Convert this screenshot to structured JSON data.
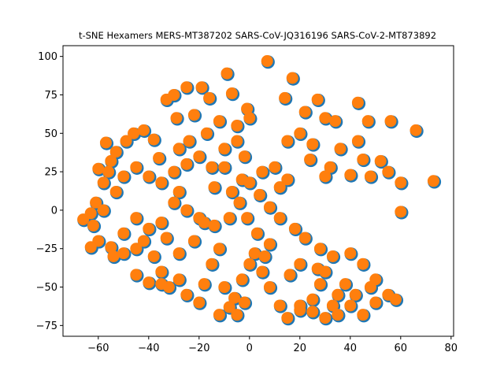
{
  "chart_data": {
    "type": "scatter",
    "title": "t-SNE Hexamers MERS-MT387202 SARS-CoV-JQ316196 SARS-CoV-2-MT873892",
    "xlabel": "",
    "ylabel": "",
    "xlim": [
      -74,
      81
    ],
    "ylim": [
      -82,
      107
    ],
    "xticks": [
      -60,
      -40,
      -20,
      0,
      20,
      40,
      60,
      80
    ],
    "yticks": [
      -75,
      -50,
      -25,
      0,
      25,
      50,
      75,
      100
    ],
    "grid": false,
    "legend": "none",
    "series": [
      {
        "color": "#1f77b4",
        "points": [
          [
            -66,
            -6
          ],
          [
            -63,
            -2
          ],
          [
            -61,
            5
          ],
          [
            -60,
            27
          ],
          [
            -58,
            18
          ],
          [
            -56,
            25
          ],
          [
            -57,
            44
          ],
          [
            -55,
            32
          ],
          [
            -53,
            38
          ],
          [
            -49,
            45
          ],
          [
            -46,
            50
          ],
          [
            -42,
            52
          ],
          [
            -38,
            46
          ],
          [
            -36,
            34
          ],
          [
            -33,
            72
          ],
          [
            -30,
            75
          ],
          [
            -29,
            60
          ],
          [
            -25,
            80
          ],
          [
            -22,
            62
          ],
          [
            -19,
            80
          ],
          [
            -16,
            73
          ],
          [
            -12,
            58
          ],
          [
            -9,
            89
          ],
          [
            -7,
            76
          ],
          [
            -5,
            55
          ],
          [
            -1,
            66
          ],
          [
            0,
            60
          ],
          [
            7,
            97
          ],
          [
            14,
            73
          ],
          [
            17,
            86
          ],
          [
            22,
            64
          ],
          [
            27,
            72
          ],
          [
            30,
            60
          ],
          [
            34,
            58
          ],
          [
            43,
            70
          ],
          [
            47,
            58
          ],
          [
            56,
            58
          ],
          [
            66,
            52
          ],
          [
            43,
            45
          ],
          [
            20,
            50
          ],
          [
            25,
            43
          ],
          [
            36,
            40
          ],
          [
            45,
            33
          ],
          [
            52,
            32
          ],
          [
            55,
            25
          ],
          [
            60,
            18
          ],
          [
            73,
            19
          ],
          [
            60,
            -1
          ],
          [
            48,
            22
          ],
          [
            40,
            23
          ],
          [
            30,
            22
          ],
          [
            15,
            20
          ],
          [
            5,
            25
          ],
          [
            -2,
            35
          ],
          [
            -5,
            45
          ],
          [
            -10,
            40
          ],
          [
            -15,
            28
          ],
          [
            -20,
            35
          ],
          [
            -25,
            30
          ],
          [
            -30,
            25
          ],
          [
            -35,
            18
          ],
          [
            -40,
            22
          ],
          [
            -45,
            28
          ],
          [
            -50,
            22
          ],
          [
            -53,
            12
          ],
          [
            -58,
            0
          ],
          [
            -62,
            -10
          ],
          [
            -60,
            -20
          ],
          [
            -63,
            -24
          ],
          [
            -55,
            -24
          ],
          [
            -50,
            -15
          ],
          [
            -45,
            -5
          ],
          [
            -42,
            -20
          ],
          [
            -38,
            -30
          ],
          [
            -35,
            -40
          ],
          [
            -32,
            -50
          ],
          [
            -28,
            -45
          ],
          [
            -25,
            -55
          ],
          [
            -20,
            -60
          ],
          [
            -18,
            -48
          ],
          [
            -15,
            -35
          ],
          [
            -12,
            -25
          ],
          [
            -10,
            -50
          ],
          [
            -8,
            -63
          ],
          [
            -6,
            -57
          ],
          [
            -3,
            -45
          ],
          [
            0,
            -35
          ],
          [
            2,
            -28
          ],
          [
            5,
            -40
          ],
          [
            -12,
            -68
          ],
          [
            -5,
            -68
          ],
          [
            8,
            -50
          ],
          [
            12,
            -62
          ],
          [
            15,
            -70
          ],
          [
            20,
            -65
          ],
          [
            25,
            -58
          ],
          [
            28,
            -48
          ],
          [
            30,
            -40
          ],
          [
            33,
            -30
          ],
          [
            28,
            -25
          ],
          [
            22,
            -18
          ],
          [
            18,
            -12
          ],
          [
            12,
            -5
          ],
          [
            8,
            2
          ],
          [
            4,
            10
          ],
          [
            0,
            18
          ],
          [
            -4,
            5
          ],
          [
            -8,
            -5
          ],
          [
            -14,
            -10
          ],
          [
            -20,
            -5
          ],
          [
            -25,
            0
          ],
          [
            -30,
            5
          ],
          [
            -35,
            -8
          ],
          [
            -40,
            -12
          ],
          [
            -45,
            -25
          ],
          [
            -50,
            -28
          ],
          [
            -54,
            -30
          ],
          [
            -45,
            -42
          ],
          [
            -40,
            -47
          ],
          [
            -35,
            -48
          ],
          [
            -28,
            -28
          ],
          [
            -22,
            -20
          ],
          [
            -18,
            -8
          ],
          [
            -28,
            12
          ],
          [
            -33,
            -18
          ],
          [
            35,
            -55
          ],
          [
            40,
            -62
          ],
          [
            45,
            -68
          ],
          [
            50,
            -60
          ],
          [
            55,
            -55
          ],
          [
            58,
            -58
          ],
          [
            50,
            -45
          ],
          [
            45,
            -35
          ],
          [
            40,
            -28
          ],
          [
            35,
            -68
          ],
          [
            30,
            -70
          ],
          [
            25,
            -66
          ],
          [
            20,
            -62
          ],
          [
            38,
            -48
          ],
          [
            42,
            -55
          ],
          [
            -3,
            20
          ],
          [
            10,
            28
          ],
          [
            12,
            15
          ],
          [
            -7,
            12
          ],
          [
            3,
            -15
          ],
          [
            -1,
            -5
          ],
          [
            6,
            -30
          ],
          [
            16,
            -42
          ],
          [
            20,
            -35
          ],
          [
            -14,
            15
          ],
          [
            -24,
            45
          ],
          [
            -28,
            40
          ],
          [
            -17,
            50
          ],
          [
            -10,
            28
          ],
          [
            24,
            33
          ],
          [
            15,
            45
          ],
          [
            32,
            28
          ],
          [
            48,
            -50
          ],
          [
            27,
            -38
          ],
          [
            33,
            -62
          ],
          [
            -2,
            -60
          ],
          [
            8,
            -22
          ]
        ]
      },
      {
        "color": "#ff7f0e",
        "points": [
          [
            -66,
            -6
          ],
          [
            -63,
            -2
          ],
          [
            -61,
            5
          ],
          [
            -60,
            27
          ],
          [
            -58,
            18
          ],
          [
            -56,
            25
          ],
          [
            -57,
            44
          ],
          [
            -55,
            32
          ],
          [
            -53,
            38
          ],
          [
            -49,
            45
          ],
          [
            -46,
            50
          ],
          [
            -42,
            52
          ],
          [
            -38,
            46
          ],
          [
            -36,
            34
          ],
          [
            -33,
            72
          ],
          [
            -30,
            75
          ],
          [
            -29,
            60
          ],
          [
            -25,
            80
          ],
          [
            -22,
            62
          ],
          [
            -19,
            80
          ],
          [
            -16,
            73
          ],
          [
            -12,
            58
          ],
          [
            -9,
            89
          ],
          [
            -7,
            76
          ],
          [
            -5,
            55
          ],
          [
            -1,
            66
          ],
          [
            0,
            60
          ],
          [
            7,
            97
          ],
          [
            14,
            73
          ],
          [
            17,
            86
          ],
          [
            22,
            64
          ],
          [
            27,
            72
          ],
          [
            30,
            60
          ],
          [
            34,
            58
          ],
          [
            43,
            70
          ],
          [
            47,
            58
          ],
          [
            56,
            58
          ],
          [
            66,
            52
          ],
          [
            43,
            45
          ],
          [
            20,
            50
          ],
          [
            25,
            43
          ],
          [
            36,
            40
          ],
          [
            45,
            33
          ],
          [
            52,
            32
          ],
          [
            55,
            25
          ],
          [
            60,
            18
          ],
          [
            73,
            19
          ],
          [
            60,
            -1
          ],
          [
            48,
            22
          ],
          [
            40,
            23
          ],
          [
            30,
            22
          ],
          [
            15,
            20
          ],
          [
            5,
            25
          ],
          [
            -2,
            35
          ],
          [
            -5,
            45
          ],
          [
            -10,
            40
          ],
          [
            -15,
            28
          ],
          [
            -20,
            35
          ],
          [
            -25,
            30
          ],
          [
            -30,
            25
          ],
          [
            -35,
            18
          ],
          [
            -40,
            22
          ],
          [
            -45,
            28
          ],
          [
            -50,
            22
          ],
          [
            -53,
            12
          ],
          [
            -58,
            0
          ],
          [
            -62,
            -10
          ],
          [
            -60,
            -20
          ],
          [
            -63,
            -24
          ],
          [
            -55,
            -24
          ],
          [
            -50,
            -15
          ],
          [
            -45,
            -5
          ],
          [
            -42,
            -20
          ],
          [
            -38,
            -30
          ],
          [
            -35,
            -40
          ],
          [
            -32,
            -50
          ],
          [
            -28,
            -45
          ],
          [
            -25,
            -55
          ],
          [
            -20,
            -60
          ],
          [
            -18,
            -48
          ],
          [
            -15,
            -35
          ],
          [
            -12,
            -25
          ],
          [
            -10,
            -50
          ],
          [
            -8,
            -63
          ],
          [
            -6,
            -57
          ],
          [
            -3,
            -45
          ],
          [
            0,
            -35
          ],
          [
            2,
            -28
          ],
          [
            5,
            -40
          ],
          [
            -12,
            -68
          ],
          [
            -5,
            -68
          ],
          [
            8,
            -50
          ],
          [
            12,
            -62
          ],
          [
            15,
            -70
          ],
          [
            20,
            -65
          ],
          [
            25,
            -58
          ],
          [
            28,
            -48
          ],
          [
            30,
            -40
          ],
          [
            33,
            -30
          ],
          [
            28,
            -25
          ],
          [
            22,
            -18
          ],
          [
            18,
            -12
          ],
          [
            12,
            -5
          ],
          [
            8,
            2
          ],
          [
            4,
            10
          ],
          [
            0,
            18
          ],
          [
            -4,
            5
          ],
          [
            -8,
            -5
          ],
          [
            -14,
            -10
          ],
          [
            -20,
            -5
          ],
          [
            -25,
            0
          ],
          [
            -30,
            5
          ],
          [
            -35,
            -8
          ],
          [
            -40,
            -12
          ],
          [
            -45,
            -25
          ],
          [
            -50,
            -28
          ],
          [
            -54,
            -30
          ],
          [
            -45,
            -42
          ],
          [
            -40,
            -47
          ],
          [
            -35,
            -48
          ],
          [
            -28,
            -28
          ],
          [
            -22,
            -20
          ],
          [
            -18,
            -8
          ],
          [
            -28,
            12
          ],
          [
            -33,
            -18
          ],
          [
            35,
            -55
          ],
          [
            40,
            -62
          ],
          [
            45,
            -68
          ],
          [
            50,
            -60
          ],
          [
            55,
            -55
          ],
          [
            58,
            -58
          ],
          [
            50,
            -45
          ],
          [
            45,
            -35
          ],
          [
            40,
            -28
          ],
          [
            35,
            -68
          ],
          [
            30,
            -70
          ],
          [
            25,
            -66
          ],
          [
            20,
            -62
          ],
          [
            38,
            -48
          ],
          [
            42,
            -55
          ],
          [
            -3,
            20
          ],
          [
            10,
            28
          ],
          [
            12,
            15
          ],
          [
            -7,
            12
          ],
          [
            3,
            -15
          ],
          [
            -1,
            -5
          ],
          [
            6,
            -30
          ],
          [
            16,
            -42
          ],
          [
            20,
            -35
          ],
          [
            -14,
            15
          ],
          [
            -24,
            45
          ],
          [
            -28,
            40
          ],
          [
            -17,
            50
          ],
          [
            -10,
            28
          ],
          [
            24,
            33
          ],
          [
            15,
            45
          ],
          [
            32,
            28
          ],
          [
            48,
            -50
          ],
          [
            27,
            -38
          ],
          [
            33,
            -62
          ],
          [
            -2,
            -60
          ],
          [
            8,
            -22
          ]
        ]
      }
    ]
  }
}
